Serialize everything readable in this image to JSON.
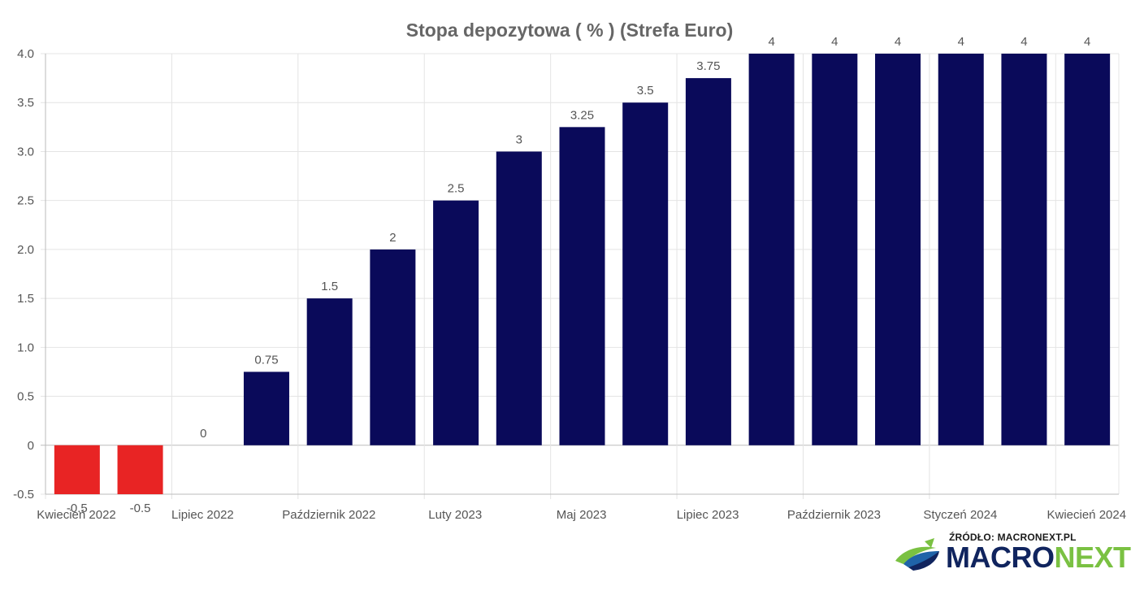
{
  "chart_data": {
    "type": "bar",
    "title": "Stopa depozytowa ( % ) (Strefa Euro)",
    "xlabel": "",
    "ylabel": "",
    "ylim": [
      -0.5,
      4.0
    ],
    "y_ticks": [
      "4.0",
      "3.5",
      "3.0",
      "2.5",
      "2.0",
      "1.5",
      "1.0",
      "0.5",
      "0",
      "-0.5"
    ],
    "y_tick_values": [
      4.0,
      3.5,
      3.0,
      2.5,
      2.0,
      1.5,
      1.0,
      0.5,
      0,
      -0.5
    ],
    "x_tick_labels": [
      "Kwiecień 2022",
      "Lipiec 2022",
      "Październik 2022",
      "Luty 2023",
      "Maj 2023",
      "Lipiec 2023",
      "Październik 2023",
      "Styczeń 2024",
      "Kwiecień 2024"
    ],
    "x_tick_indices": [
      0,
      2,
      4,
      6,
      8,
      10,
      12,
      14,
      16
    ],
    "values": [
      -0.5,
      -0.5,
      0,
      0.75,
      1.5,
      2,
      2.5,
      3,
      3.25,
      3.5,
      3.75,
      4,
      4,
      4,
      4,
      4,
      4
    ],
    "data_labels": [
      "-0.5",
      "-0.5",
      "0",
      "0.75",
      "1.5",
      "2",
      "2.5",
      "3",
      "3.25",
      "3.5",
      "3.75",
      "4",
      "4",
      "4",
      "4",
      "4",
      "4"
    ],
    "grid": true,
    "legend": "none",
    "colors": {
      "positive": "#0a0a5a",
      "negative": "#e82424"
    }
  },
  "source": {
    "label": "ŹRÓDŁO: MACRONEXT.PL",
    "brand_part1": "MACRO",
    "brand_part2": "NEXT"
  }
}
